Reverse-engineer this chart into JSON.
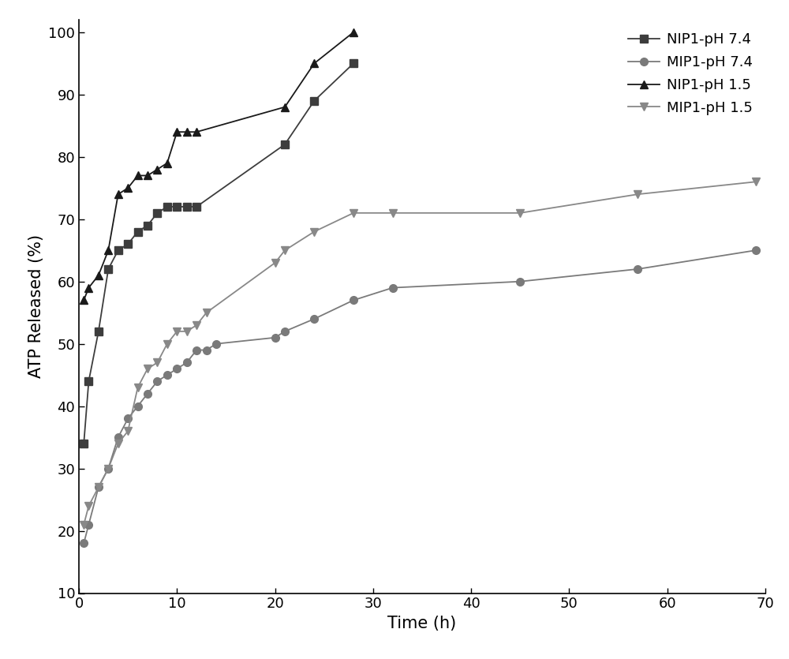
{
  "series": [
    {
      "label": "NIP1-pH 7.4",
      "color": "#3d3d3d",
      "marker": "s",
      "markersize": 7,
      "linewidth": 1.3,
      "x": [
        0.5,
        1,
        2,
        3,
        4,
        5,
        6,
        7,
        8,
        9,
        10,
        11,
        12,
        21,
        24,
        28
      ],
      "y": [
        34,
        44,
        52,
        62,
        65,
        66,
        68,
        69,
        71,
        72,
        72,
        72,
        72,
        82,
        89,
        95
      ]
    },
    {
      "label": "MIP1-pH 7.4",
      "color": "#7a7a7a",
      "marker": "o",
      "markersize": 7,
      "linewidth": 1.3,
      "x": [
        0.5,
        1,
        2,
        3,
        4,
        5,
        6,
        7,
        8,
        9,
        10,
        11,
        12,
        13,
        14,
        20,
        21,
        24,
        28,
        32,
        45,
        57,
        69
      ],
      "y": [
        18,
        21,
        27,
        30,
        35,
        38,
        40,
        42,
        44,
        45,
        46,
        47,
        49,
        49,
        50,
        51,
        52,
        54,
        57,
        59,
        60,
        62,
        65
      ]
    },
    {
      "label": "NIP1-pH 1.5",
      "color": "#1a1a1a",
      "marker": "^",
      "markersize": 7,
      "linewidth": 1.3,
      "x": [
        0.5,
        1,
        2,
        3,
        4,
        5,
        6,
        7,
        8,
        9,
        10,
        11,
        12,
        21,
        24,
        28
      ],
      "y": [
        57,
        59,
        61,
        65,
        74,
        75,
        77,
        77,
        78,
        79,
        84,
        84,
        84,
        88,
        95,
        100
      ]
    },
    {
      "label": "MIP1-pH 1.5",
      "color": "#888888",
      "marker": "v",
      "markersize": 7,
      "linewidth": 1.3,
      "x": [
        0.5,
        1,
        2,
        3,
        4,
        5,
        6,
        7,
        8,
        9,
        10,
        11,
        12,
        13,
        20,
        21,
        24,
        28,
        32,
        45,
        57,
        69
      ],
      "y": [
        21,
        24,
        27,
        30,
        34,
        36,
        43,
        46,
        47,
        50,
        52,
        52,
        53,
        55,
        63,
        65,
        68,
        71,
        71,
        71,
        74,
        76
      ]
    }
  ],
  "xlabel": "Time (h)",
  "ylabel": "ATP Released (%)",
  "xlim": [
    0,
    70
  ],
  "ylim": [
    10,
    102
  ],
  "xticks": [
    0,
    10,
    20,
    30,
    40,
    50,
    60,
    70
  ],
  "yticks": [
    10,
    20,
    30,
    40,
    50,
    60,
    70,
    80,
    90,
    100
  ],
  "background_color": "#ffffff",
  "plot_background": "#ffffff",
  "label_fontsize": 15,
  "tick_fontsize": 13,
  "legend_fontsize": 13
}
